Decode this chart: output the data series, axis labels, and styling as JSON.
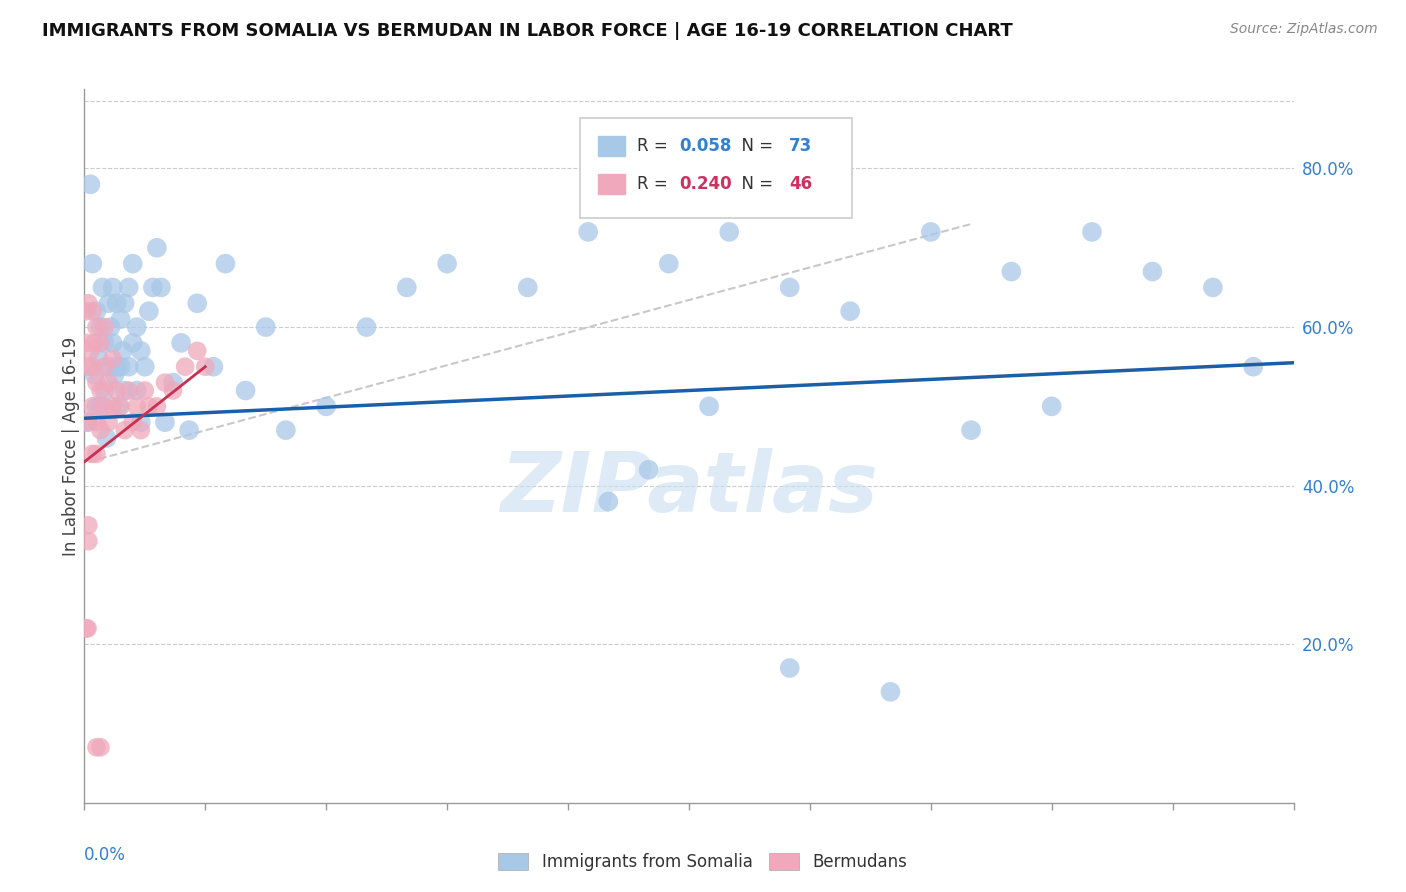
{
  "title": "IMMIGRANTS FROM SOMALIA VS BERMUDAN IN LABOR FORCE | AGE 16-19 CORRELATION CHART",
  "source": "Source: ZipAtlas.com",
  "ylabel": "In Labor Force | Age 16-19",
  "somalia_color": "#a8c8e8",
  "bermuda_color": "#f0a8bc",
  "somalia_line_color": "#1a5fa8",
  "bermuda_line_color": "#c83050",
  "dash_color": "#c8c8c8",
  "watermark_color": "#c8dff0",
  "r_somalia": "0.058",
  "n_somalia": "73",
  "r_bermuda": "0.240",
  "n_bermuda": "46",
  "blue_text": "#3380d0",
  "pink_text": "#d03060",
  "somalia_x": [
    0.0008,
    0.0015,
    0.002,
    0.0025,
    0.003,
    0.003,
    0.0035,
    0.004,
    0.004,
    0.0045,
    0.005,
    0.005,
    0.0055,
    0.006,
    0.006,
    0.0065,
    0.007,
    0.007,
    0.0075,
    0.008,
    0.008,
    0.0085,
    0.009,
    0.009,
    0.0095,
    0.01,
    0.01,
    0.011,
    0.011,
    0.012,
    0.012,
    0.013,
    0.013,
    0.014,
    0.014,
    0.015,
    0.016,
    0.017,
    0.018,
    0.019,
    0.02,
    0.022,
    0.024,
    0.026,
    0.028,
    0.032,
    0.035,
    0.04,
    0.045,
    0.05,
    0.06,
    0.07,
    0.08,
    0.09,
    0.11,
    0.125,
    0.145,
    0.16,
    0.175,
    0.19,
    0.21,
    0.23,
    0.25,
    0.265,
    0.28,
    0.175,
    0.2,
    0.22,
    0.24,
    0.155,
    0.29,
    0.13,
    0.14
  ],
  "somalia_y": [
    0.48,
    0.78,
    0.68,
    0.54,
    0.62,
    0.5,
    0.56,
    0.6,
    0.5,
    0.65,
    0.58,
    0.52,
    0.46,
    0.63,
    0.55,
    0.6,
    0.65,
    0.58,
    0.54,
    0.63,
    0.55,
    0.5,
    0.61,
    0.55,
    0.57,
    0.63,
    0.52,
    0.65,
    0.55,
    0.68,
    0.58,
    0.6,
    0.52,
    0.57,
    0.48,
    0.55,
    0.62,
    0.65,
    0.7,
    0.65,
    0.48,
    0.53,
    0.58,
    0.47,
    0.63,
    0.55,
    0.68,
    0.52,
    0.6,
    0.47,
    0.5,
    0.6,
    0.65,
    0.68,
    0.65,
    0.72,
    0.68,
    0.72,
    0.65,
    0.62,
    0.72,
    0.67,
    0.72,
    0.67,
    0.65,
    0.17,
    0.14,
    0.47,
    0.5,
    0.5,
    0.55,
    0.38,
    0.42
  ],
  "bermuda_x": [
    0.0005,
    0.0008,
    0.001,
    0.001,
    0.001,
    0.0015,
    0.002,
    0.002,
    0.002,
    0.002,
    0.0025,
    0.003,
    0.003,
    0.003,
    0.003,
    0.004,
    0.004,
    0.004,
    0.005,
    0.005,
    0.005,
    0.006,
    0.006,
    0.007,
    0.007,
    0.008,
    0.009,
    0.01,
    0.011,
    0.012,
    0.013,
    0.014,
    0.015,
    0.016,
    0.018,
    0.02,
    0.022,
    0.025,
    0.028,
    0.03,
    0.001,
    0.001,
    0.0008,
    0.0005,
    0.003,
    0.004
  ],
  "bermuda_y": [
    0.62,
    0.58,
    0.63,
    0.55,
    0.48,
    0.57,
    0.62,
    0.55,
    0.5,
    0.44,
    0.58,
    0.6,
    0.53,
    0.48,
    0.44,
    0.58,
    0.52,
    0.47,
    0.6,
    0.55,
    0.5,
    0.53,
    0.48,
    0.56,
    0.5,
    0.52,
    0.5,
    0.47,
    0.52,
    0.48,
    0.5,
    0.47,
    0.52,
    0.5,
    0.5,
    0.53,
    0.52,
    0.55,
    0.57,
    0.55,
    0.35,
    0.33,
    0.22,
    0.22,
    0.07,
    0.07
  ],
  "xlim": [
    0.0,
    0.3
  ],
  "ylim": [
    0.0,
    0.9
  ],
  "xmin": 0.0,
  "xmax": 0.3,
  "ymin": 0.0,
  "ymax": 0.9
}
